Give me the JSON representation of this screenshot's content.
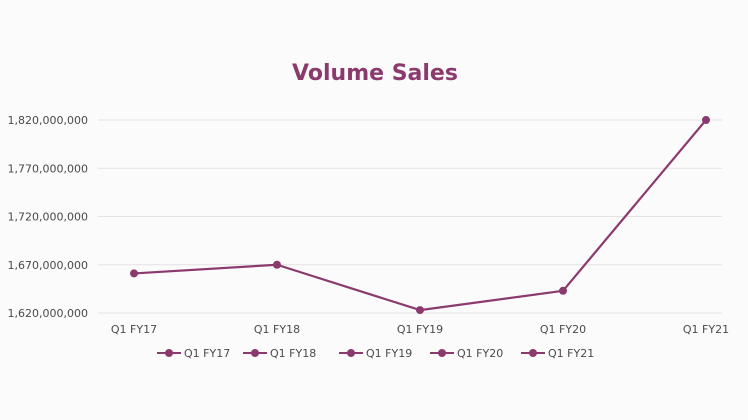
{
  "chart_data": {
    "type": "line",
    "title": "Volume Sales",
    "categories": [
      "Q1 FY17",
      "Q1 FY18",
      "Q1 FY19",
      "Q1 FY20",
      "Q1 FY21"
    ],
    "series": [
      {
        "values": [
          1661000000,
          1670000000,
          1623000000,
          1643000000,
          1820000000
        ]
      }
    ],
    "ylim": [
      1620000000,
      1820000000
    ],
    "y_ticks": [
      "1,620,000,000",
      "1,670,000,000",
      "1,720,000,000",
      "1,770,000,000",
      "1,820,000,000"
    ],
    "y_tick_values": [
      1620000000,
      1670000000,
      1720000000,
      1770000000,
      1820000000
    ],
    "legend": [
      "Q1 FY17",
      "Q1 FY18",
      "Q1 FY19",
      "Q1 FY20",
      "Q1 FY21"
    ],
    "legend_position": "bottom",
    "grid": true,
    "colors": {
      "series": "#8b3a6e",
      "title": "#8b3a6e",
      "grid": "#e3e3e3"
    }
  }
}
